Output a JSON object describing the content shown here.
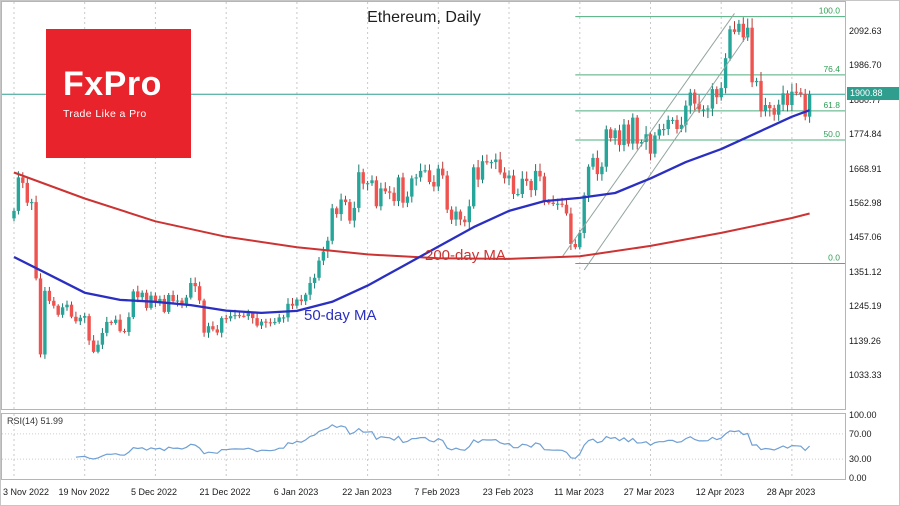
{
  "logo": {
    "name": "FxPro",
    "tagline": "Trade Like a Pro"
  },
  "price_badge": {
    "label": "1900.88"
  },
  "colors": {
    "candle_up": "#26a69a",
    "candle_up_stroke": "#16796f",
    "candle_down": "#ef5350",
    "candle_down_stroke": "#b73a36",
    "ma50": "#2a2fc1",
    "ma200": "#cc3333",
    "rsi_line": "#6f9fd4",
    "fib": "#4fae7e",
    "fib_label": "#2f9e55",
    "price_line": "#2f9e8f",
    "grid": "#c9c9c9",
    "rsi_grid": "#cccccc",
    "channel": "#93a59f",
    "logo_bg": "#e8232b",
    "axis_text": "#1a1a1a"
  },
  "chart_data": [
    {
      "type": "candlestick",
      "title": "Ethereum, Daily",
      "start_date": "2022-11-03",
      "interval": "daily",
      "first_open": 1519,
      "closes": [
        1542,
        1645,
        1628,
        1567,
        1569,
        1334,
        1100,
        1296,
        1265,
        1250,
        1222,
        1245,
        1253,
        1216,
        1202,
        1213,
        1218,
        1143,
        1108,
        1130,
        1166,
        1200,
        1197,
        1207,
        1172,
        1169,
        1215,
        1294,
        1276,
        1290,
        1243,
        1281,
        1260,
        1271,
        1231,
        1283,
        1264,
        1266,
        1252,
        1275,
        1320,
        1310,
        1266,
        1167,
        1187,
        1177,
        1167,
        1212,
        1211,
        1218,
        1221,
        1219,
        1218,
        1227,
        1212,
        1189,
        1201,
        1199,
        1196,
        1200,
        1214,
        1214,
        1256,
        1250,
        1269,
        1264,
        1284,
        1320,
        1336,
        1389,
        1417,
        1450,
        1550,
        1532,
        1577,
        1569,
        1512,
        1551,
        1661,
        1626,
        1627,
        1636,
        1556,
        1611,
        1602,
        1598,
        1572,
        1645,
        1567,
        1586,
        1642,
        1645,
        1665,
        1667,
        1631,
        1617,
        1672,
        1651,
        1546,
        1515,
        1540,
        1515,
        1507,
        1556,
        1676,
        1638,
        1695,
        1691,
        1692,
        1700,
        1660,
        1642,
        1651,
        1594,
        1594,
        1641,
        1634,
        1606,
        1665,
        1648,
        1570,
        1567,
        1563,
        1564,
        1561,
        1534,
        1440,
        1430,
        1474,
        1590,
        1678,
        1705,
        1655,
        1678,
        1793,
        1766,
        1790,
        1745,
        1808,
        1749,
        1829,
        1749,
        1754,
        1778,
        1718,
        1774,
        1793,
        1794,
        1822,
        1822,
        1794,
        1807,
        1866,
        1906,
        1872,
        1854,
        1854,
        1857,
        1917,
        1892,
        1920,
        2012,
        2101,
        2093,
        2118,
        2076,
        2106,
        1938,
        1942,
        1849,
        1868,
        1858,
        1838,
        1869,
        1904,
        1868,
        1909,
        1907,
        1901,
        1832,
        1900.88
      ],
      "ylim": [
        932,
        2185
      ],
      "price_ticks": [
        2092.63,
        1986.7,
        1880.77,
        1774.84,
        1668.91,
        1562.98,
        1457.06,
        1351.12,
        1245.19,
        1139.26,
        1033.33
      ],
      "x_tick_indices": [
        0,
        16,
        32,
        48,
        64,
        80,
        96,
        112,
        128,
        144,
        160,
        176
      ],
      "x_tick_labels": [
        "3 Nov 2022",
        "19 Nov 2022",
        "5 Dec 2022",
        "21 Dec 2022",
        "6 Jan 2023",
        "22 Jan 2023",
        "7 Feb 2023",
        "23 Feb 2023",
        "11 Mar 2023",
        "27 Mar 2023",
        "12 Apr 2023",
        "28 Apr 2023"
      ],
      "overlays": {
        "ma50": {
          "name": "50-day MA",
          "points": [
            [
              0,
              1400
            ],
            [
              8,
              1345
            ],
            [
              16,
              1290
            ],
            [
              24,
              1268
            ],
            [
              32,
              1262
            ],
            [
              40,
              1252
            ],
            [
              48,
              1235
            ],
            [
              56,
              1228
            ],
            [
              64,
              1234
            ],
            [
              72,
              1262
            ],
            [
              80,
              1312
            ],
            [
              88,
              1372
            ],
            [
              96,
              1432
            ],
            [
              104,
              1492
            ],
            [
              112,
              1542
            ],
            [
              120,
              1572
            ],
            [
              128,
              1582
            ],
            [
              136,
              1597
            ],
            [
              144,
              1642
            ],
            [
              152,
              1692
            ],
            [
              160,
              1732
            ],
            [
              168,
              1782
            ],
            [
              176,
              1832
            ],
            [
              180,
              1852
            ]
          ]
        },
        "ma200": {
          "name": "200-day MA",
          "points": [
            [
              0,
              1660
            ],
            [
              16,
              1580
            ],
            [
              32,
              1510
            ],
            [
              48,
              1462
            ],
            [
              64,
              1430
            ],
            [
              80,
              1408
            ],
            [
              96,
              1396
            ],
            [
              112,
              1394
            ],
            [
              128,
              1402
            ],
            [
              144,
              1434
            ],
            [
              160,
              1474
            ],
            [
              176,
              1520
            ],
            [
              180,
              1534
            ]
          ]
        },
        "fib_retracement": {
          "start_index": 127,
          "levels": [
            {
              "label": "100.0",
              "price": 2140.0
            },
            {
              "label": "76.4",
              "price": 1960.6
            },
            {
              "label": "61.8",
              "price": 1849.7
            },
            {
              "label": "50.0",
              "price": 1760.0
            },
            {
              "label": "0.0",
              "price": 1380.0
            }
          ]
        },
        "price_line": 1900.88,
        "channel": [
          {
            "from": [
              124,
              1400
            ],
            "to": [
              163,
              2150
            ]
          },
          {
            "from": [
              129,
              1360
            ],
            "to": [
              166,
              2085
            ]
          }
        ]
      }
    },
    {
      "type": "line",
      "name": "RSI",
      "label": "RSI(14) 51.99",
      "period": 14,
      "last_value": 51.99,
      "range": [
        0,
        100
      ],
      "ticks": [
        100,
        70,
        30,
        0
      ]
    }
  ]
}
